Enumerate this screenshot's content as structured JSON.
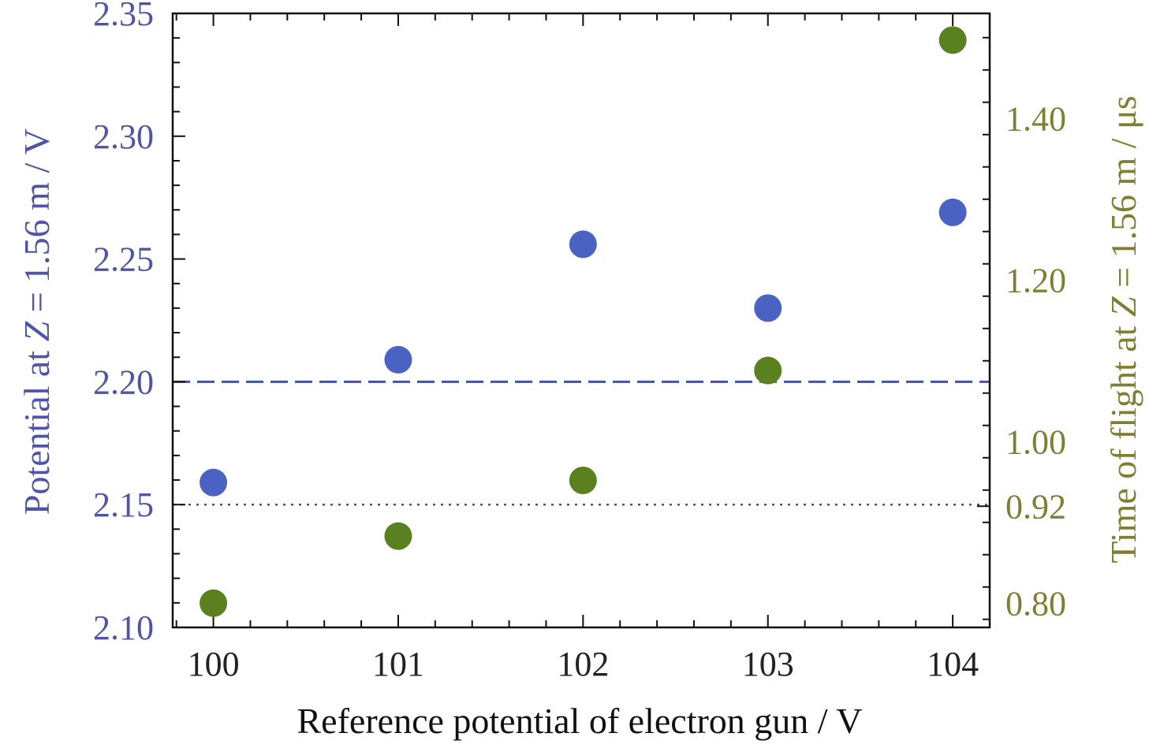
{
  "chart_data": {
    "type": "scatter",
    "xlabel": "Reference potential of electron gun / V",
    "ylabel_left": {
      "prefix": "Potential at ",
      "var": "Z",
      "suffix": " = 1.56 m / V"
    },
    "ylabel_right": {
      "prefix": "Time of flight at ",
      "var": "Z",
      "suffix": " = 1.56 m / μs"
    },
    "x": [
      100,
      101,
      102,
      103,
      104
    ],
    "xlim": [
      99.78,
      104.2
    ],
    "xticks": [
      "100",
      "101",
      "102",
      "103",
      "104"
    ],
    "ylim_left": [
      2.1,
      2.35
    ],
    "yticks_left": [
      "2.10",
      "2.15",
      "2.20",
      "2.25",
      "2.30",
      "2.35"
    ],
    "ylim_right": [
      0.77,
      1.53
    ],
    "yticks_right": [
      {
        "value": 0.8,
        "label": "0.80"
      },
      {
        "value": 0.92,
        "label": "0.92"
      },
      {
        "value": 1.0,
        "label": "1.00"
      },
      {
        "value": 1.2,
        "label": "1.20"
      },
      {
        "value": 1.4,
        "label": "1.40"
      }
    ],
    "series": [
      {
        "axis": "left",
        "color": "#4a63c2",
        "values": [
          2.159,
          2.209,
          2.256,
          2.23,
          2.269
        ]
      },
      {
        "axis": "right",
        "color": "#5b8020",
        "values": [
          0.8,
          0.883,
          0.952,
          1.088,
          1.497
        ]
      }
    ],
    "reference_lines": [
      {
        "axis": "left",
        "value": 2.2,
        "style": "dashed",
        "color": "#3d4fc4"
      },
      {
        "axis": "left",
        "value": 2.15,
        "style": "dotted",
        "color": "#555555"
      }
    ],
    "colors": {
      "left_axis": "#4f55a6",
      "right_axis": "#7f7f33",
      "frame": "#111111"
    },
    "grid": false
  }
}
